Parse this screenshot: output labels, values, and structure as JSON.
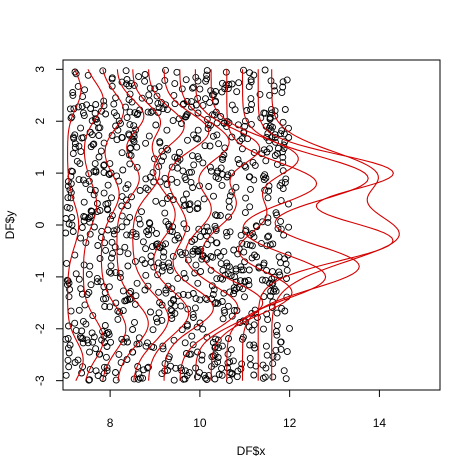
{
  "chart_data": {
    "type": "scatter",
    "title": "",
    "xlabel": "DF$x",
    "ylabel": "DF$y",
    "xlim": [
      6.95,
      15.35
    ],
    "ylim": [
      -3.18,
      3.18
    ],
    "x_ticks": [
      8,
      10,
      12,
      14
    ],
    "y_ticks": [
      -3,
      -2,
      -1,
      0,
      1,
      2,
      3
    ],
    "x_tick_labels": [
      "8",
      "10",
      "12",
      "14"
    ],
    "y_tick_labels": [
      "-3",
      "-2",
      "-1",
      "0",
      "1",
      "2",
      "3"
    ],
    "grid": false,
    "legend": "none",
    "points_style": {
      "shape": "open-circle",
      "color": "#000000"
    },
    "points_description": "about 1000 points uniformly scattered over x in [7, 12], y in [-3, 3]",
    "points_x_range": [
      7,
      12
    ],
    "points_y_range": [
      -3,
      3
    ],
    "points_count": 1000,
    "curve_color": "#d40000",
    "curves_description": "red kernel-density-like curves drawn sideways; each curve starts at a left x position and bulges to the right as y varies from -3 to 3",
    "curves": [
      {
        "base_x": 7.05,
        "bumps": [
          {
            "y": -2.6,
            "h": 0.35,
            "w": 0.5
          },
          {
            "y": 0.0,
            "h": 0.25,
            "w": 0.6
          },
          {
            "y": 2.6,
            "h": 0.3,
            "w": 0.5
          }
        ]
      },
      {
        "base_x": 7.4,
        "bumps": [
          {
            "y": -2.2,
            "h": 0.45,
            "w": 0.55
          },
          {
            "y": 0.4,
            "h": 0.3,
            "w": 0.6
          },
          {
            "y": 2.4,
            "h": 0.45,
            "w": 0.5
          }
        ]
      },
      {
        "base_x": 7.8,
        "bumps": [
          {
            "y": -2.0,
            "h": 0.55,
            "w": 0.6
          },
          {
            "y": 0.6,
            "h": 0.4,
            "w": 0.55
          },
          {
            "y": 2.2,
            "h": 0.5,
            "w": 0.5
          }
        ]
      },
      {
        "base_x": 8.15,
        "bumps": [
          {
            "y": -1.9,
            "h": 0.7,
            "w": 0.6
          },
          {
            "y": 0.9,
            "h": 0.5,
            "w": 0.5
          },
          {
            "y": 2.1,
            "h": 0.6,
            "w": 0.45
          }
        ]
      },
      {
        "base_x": 8.5,
        "bumps": [
          {
            "y": -1.8,
            "h": 0.8,
            "w": 0.65
          },
          {
            "y": 1.0,
            "h": 0.6,
            "w": 0.55
          },
          {
            "y": 2.0,
            "h": 0.6,
            "w": 0.45
          }
        ]
      },
      {
        "base_x": 8.85,
        "bumps": [
          {
            "y": -1.7,
            "h": 0.9,
            "w": 0.6
          },
          {
            "y": 0.2,
            "h": 0.6,
            "w": 0.6
          },
          {
            "y": 1.9,
            "h": 0.8,
            "w": 0.5
          }
        ]
      },
      {
        "base_x": 9.2,
        "bumps": [
          {
            "y": -1.6,
            "h": 1.1,
            "w": 0.55
          },
          {
            "y": 0.0,
            "h": 0.5,
            "w": 0.6
          },
          {
            "y": 1.8,
            "h": 1.0,
            "w": 0.5
          }
        ]
      },
      {
        "base_x": 9.55,
        "bumps": [
          {
            "y": -1.6,
            "h": 1.3,
            "w": 0.6
          },
          {
            "y": 0.3,
            "h": 0.7,
            "w": 0.55
          },
          {
            "y": 1.6,
            "h": 1.1,
            "w": 0.55
          }
        ]
      },
      {
        "base_x": 9.9,
        "bumps": [
          {
            "y": -1.5,
            "h": 1.5,
            "w": 0.55
          },
          {
            "y": 0.4,
            "h": 0.9,
            "w": 0.6
          },
          {
            "y": 1.5,
            "h": 1.4,
            "w": 0.5
          }
        ]
      },
      {
        "base_x": 10.25,
        "bumps": [
          {
            "y": -1.3,
            "h": 1.8,
            "w": 0.6
          },
          {
            "y": 0.2,
            "h": 1.2,
            "w": 0.6
          },
          {
            "y": 1.3,
            "h": 1.9,
            "w": 0.55
          }
        ]
      },
      {
        "base_x": 10.6,
        "bumps": [
          {
            "y": -1.0,
            "h": 2.2,
            "w": 0.6
          },
          {
            "y": 0.8,
            "h": 2.0,
            "w": 0.55
          }
        ]
      },
      {
        "base_x": 10.95,
        "bumps": [
          {
            "y": -0.8,
            "h": 2.6,
            "w": 0.6
          },
          {
            "y": 0.9,
            "h": 2.8,
            "w": 0.6
          }
        ]
      },
      {
        "base_x": 11.3,
        "bumps": [
          {
            "y": -0.3,
            "h": 3.0,
            "w": 0.55
          },
          {
            "y": 1.0,
            "h": 3.0,
            "w": 0.5
          }
        ]
      },
      {
        "base_x": 11.6,
        "bumps": [
          {
            "y": -0.2,
            "h": 2.8,
            "w": 0.7
          },
          {
            "y": 1.0,
            "h": 2.2,
            "w": 0.6
          }
        ]
      }
    ]
  }
}
